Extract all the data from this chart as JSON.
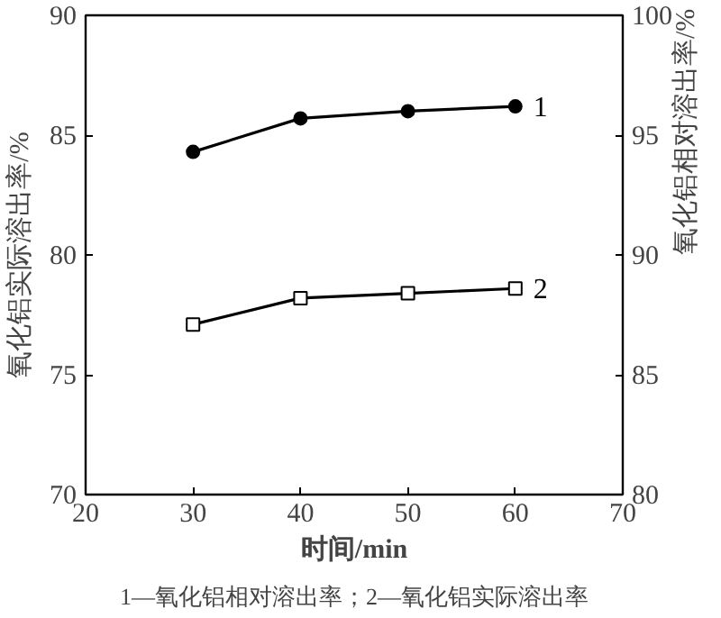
{
  "chart_data": {
    "type": "line",
    "xlabel": "时间/min",
    "ylabel": "氧化铝实际溶出率/%",
    "y2label": "氧化铝相对溶出率/%",
    "x": [
      30,
      40,
      50,
      60
    ],
    "xlim": [
      20,
      70
    ],
    "xticks": [
      20,
      30,
      40,
      50,
      60,
      70
    ],
    "ylim": [
      70,
      90
    ],
    "yticks": [
      70,
      75,
      80,
      85,
      90
    ],
    "y2lim": [
      80,
      100
    ],
    "y2ticks": [
      80,
      85,
      90,
      95,
      100
    ],
    "series": [
      {
        "name": "1",
        "color": "#000000",
        "axis": "y2",
        "marker": "circle",
        "values": [
          94.3,
          95.7,
          96.0,
          96.2
        ]
      },
      {
        "name": "2",
        "color": "#000000",
        "marker": "square",
        "values": [
          77.1,
          78.2,
          78.4,
          78.6
        ]
      }
    ],
    "annotations": [
      "1—氧化铝相对溶出率；2—氧化铝实际溶出率"
    ],
    "grid": false,
    "line_style": "solid"
  }
}
